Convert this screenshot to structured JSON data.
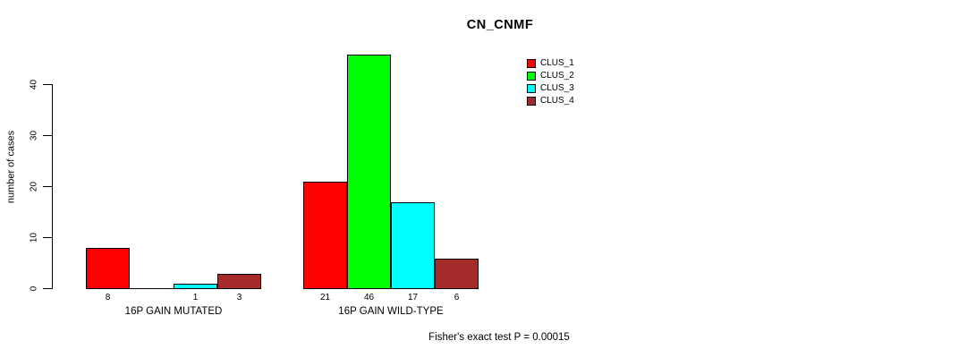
{
  "title": "CN_CNMF",
  "ylabel": "number of cases",
  "footer": "Fisher's exact test P = 0.00015",
  "legend": {
    "items": [
      {
        "label": "CLUS_1",
        "color": "#FF0000"
      },
      {
        "label": "CLUS_2",
        "color": "#00FF00"
      },
      {
        "label": "CLUS_3",
        "color": "#00FFFF"
      },
      {
        "label": "CLUS_4",
        "color": "#A52A2A"
      }
    ]
  },
  "chart_data": {
    "type": "bar",
    "title": "CN_CNMF",
    "xlabel": "",
    "ylabel": "number of cases",
    "ylim": [
      0,
      46
    ],
    "yticks": [
      0,
      10,
      20,
      30,
      40
    ],
    "grid": false,
    "legend_position": "top-right",
    "series_names": [
      "CLUS_1",
      "CLUS_2",
      "CLUS_3",
      "CLUS_4"
    ],
    "series_colors": [
      "#FF0000",
      "#00FF00",
      "#00FFFF",
      "#A52A2A"
    ],
    "groups": [
      {
        "label": "16P GAIN MUTATED",
        "values": [
          8,
          0,
          1,
          3
        ],
        "bar_labels": [
          "8",
          "",
          "1",
          "3"
        ]
      },
      {
        "label": "16P GAIN WILD-TYPE",
        "values": [
          21,
          46,
          17,
          6
        ],
        "bar_labels": [
          "21",
          "46",
          "17",
          "6"
        ]
      }
    ],
    "annotation": "Fisher's exact test P = 0.00015"
  }
}
